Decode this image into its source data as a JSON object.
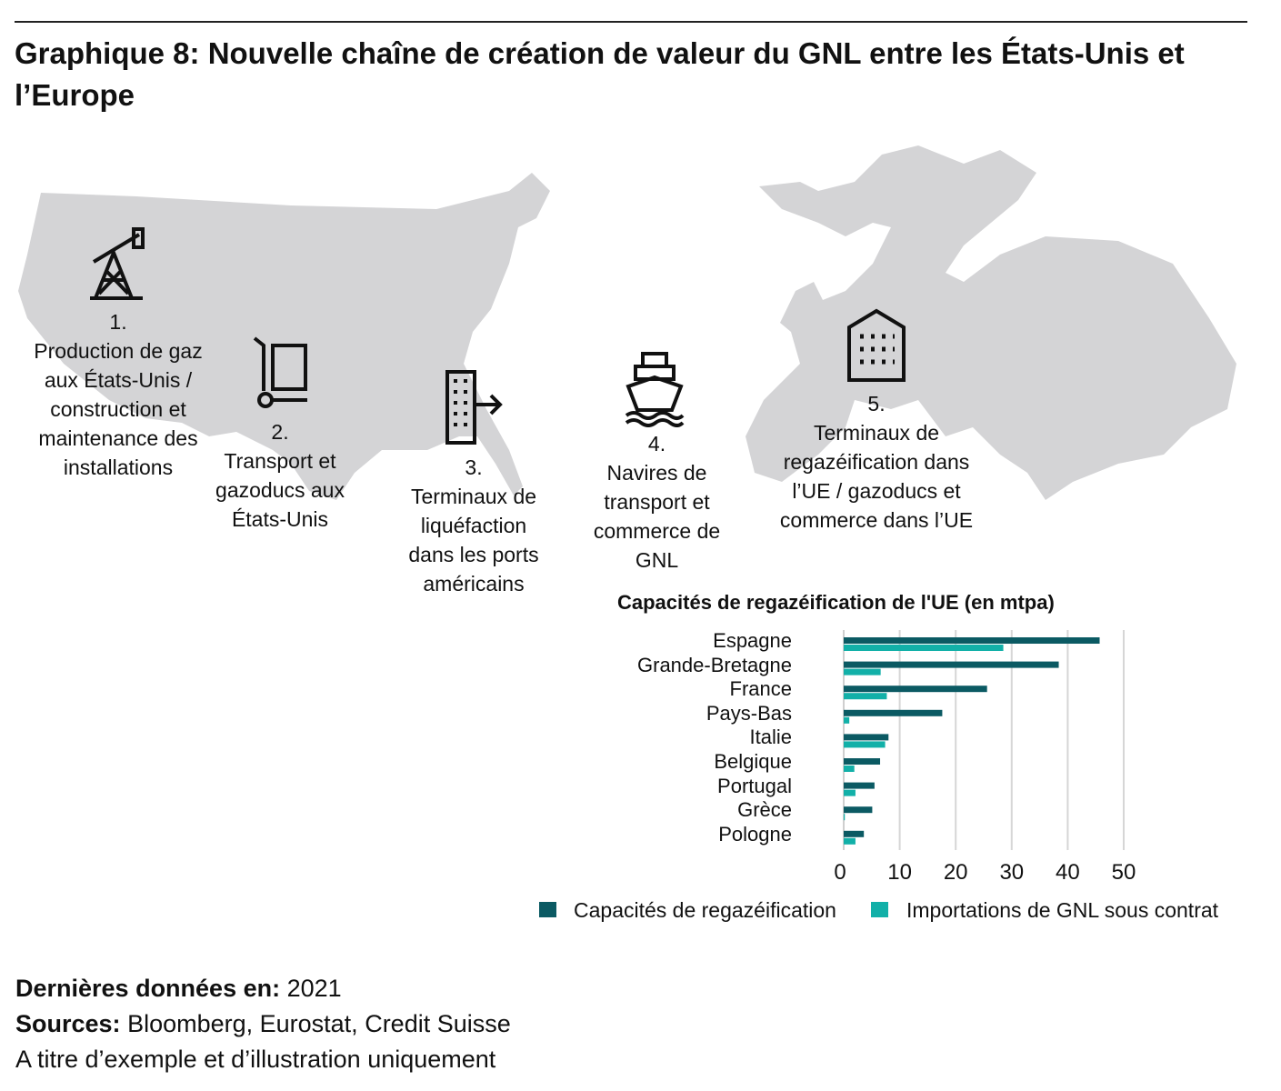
{
  "title": "Graphique 8: Nouvelle chaîne de création de valeur du GNL entre les États-Unis et l’Europe",
  "steps": [
    {
      "num": "1.",
      "text": "Production de gaz aux États-Unis / construction et maintenance des installations",
      "icon": "oil-pump-icon"
    },
    {
      "num": "2.",
      "text": "Transport et gazoducs aux États-Unis",
      "icon": "hand-truck-icon"
    },
    {
      "num": "3.",
      "text": "Terminaux de liquéfaction dans les ports américains",
      "icon": "building-export-icon"
    },
    {
      "num": "4.",
      "text": "Navires de transport et commerce de GNL",
      "icon": "ship-icon"
    },
    {
      "num": "5.",
      "text": "Terminaux de regazéification dans l’UE / gazoducs et commerce dans l’UE",
      "icon": "warehouse-icon"
    }
  ],
  "colors": {
    "capacity": "#0b5a63",
    "imports": "#12b0a8",
    "map": "#d4d4d6",
    "grid": "#d6d6d6"
  },
  "chart_data": {
    "type": "bar",
    "orientation": "horizontal",
    "title": "Capacités de regazéification de l'UE (en mtpa)",
    "categories": [
      "Espagne",
      "Grande-Bretagne",
      "France",
      "Pays-Bas",
      "Italie",
      "Belgique",
      "Portugal",
      "Grèce",
      "Pologne"
    ],
    "series": [
      {
        "name": "Capacités de regazéification",
        "values": [
          45.7,
          38.4,
          25.6,
          17.6,
          8.0,
          6.5,
          5.5,
          5.1,
          3.6
        ]
      },
      {
        "name": "Importations de GNL sous contrat",
        "values": [
          28.5,
          6.6,
          7.7,
          1.0,
          7.4,
          1.9,
          2.1,
          0.2,
          2.1
        ]
      }
    ],
    "xlim": [
      0,
      50
    ],
    "xticks": [
      "0",
      "10",
      "20",
      "30",
      "40",
      "50"
    ],
    "grid": true,
    "legend": "bottom"
  },
  "footer": {
    "data_label": "Dernières données en:",
    "data_value": "2021",
    "sources_label": "Sources:",
    "sources_value": "Bloomberg, Eurostat, Credit Suisse",
    "note": "A titre d’exemple et d’illustration uniquement"
  }
}
